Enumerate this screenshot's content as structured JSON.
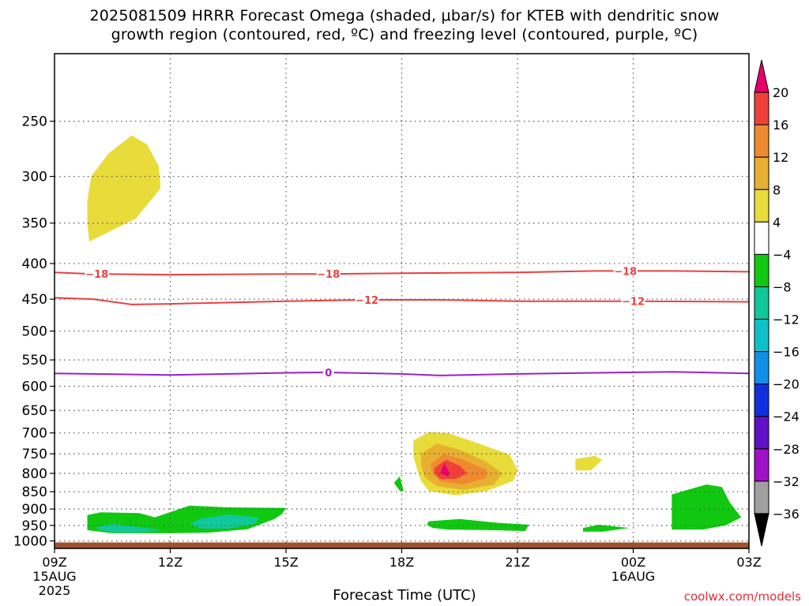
{
  "title_line1": "2025081509 HRRR Forecast Omega (shaded, μbar/s) for KTEB with dendritic snow",
  "title_line2": "growth region (contoured, red, ºC) and freezing level (contoured, purple, ºC)",
  "xaxis_title": "Forecast Time (UTC)",
  "credit": "coolwx.com/models",
  "chart_data": {
    "type": "heatmap",
    "title": "2025081509 HRRR Forecast Omega (shaded, μbar/s) for KTEB with dendritic snow growth region (contoured, red, ºC) and freezing level (contoured, purple, ºC)",
    "xlabel": "Forecast Time (UTC)",
    "ylabel": "",
    "x_range_hours": [
      0,
      18
    ],
    "x_ticks": [
      {
        "hour": 0,
        "label": "09Z",
        "sub1": "15AUG",
        "sub2": "2025"
      },
      {
        "hour": 3,
        "label": "12Z"
      },
      {
        "hour": 6,
        "label": "15Z"
      },
      {
        "hour": 9,
        "label": "18Z"
      },
      {
        "hour": 12,
        "label": "21Z"
      },
      {
        "hour": 15,
        "label": "00Z",
        "sub1": "16AUG"
      },
      {
        "hour": 18,
        "label": "03Z"
      }
    ],
    "y_axis_pressure_hPa": [
      200,
      1025
    ],
    "y_scale": "log",
    "y_inverted": true,
    "y_ticks": [
      250,
      300,
      350,
      400,
      450,
      500,
      550,
      600,
      650,
      700,
      750,
      800,
      850,
      900,
      950,
      1000
    ],
    "grid": true,
    "colorbar": {
      "levels": [
        20,
        16,
        12,
        8,
        4,
        -4,
        -8,
        -12,
        -16,
        -20,
        -24,
        -28,
        -32,
        -36
      ],
      "colors": [
        "#e8006a",
        "#f0403a",
        "#f08a30",
        "#e8b030",
        "#e8dc3a",
        "#ffffff",
        "#10c810",
        "#10c89a",
        "#10c0c8",
        "#1090e8",
        "#1030e0",
        "#6010c8",
        "#a010c8",
        "#a0a0a0",
        "#000000"
      ]
    },
    "contours": [
      {
        "name": "dendritic snow growth region",
        "value": -18,
        "color": "#e84040",
        "points": [
          [
            0,
            412
          ],
          [
            1,
            414
          ],
          [
            3,
            415
          ],
          [
            6,
            414
          ],
          [
            7,
            414
          ],
          [
            9,
            413
          ],
          [
            12,
            412
          ],
          [
            14,
            410
          ],
          [
            16,
            410
          ],
          [
            18,
            411
          ]
        ],
        "labels_at_hour": [
          1.1,
          7.1,
          14.8
        ]
      },
      {
        "name": "dendritic snow growth region",
        "value": -12,
        "color": "#e84040",
        "points": [
          [
            0,
            448
          ],
          [
            1,
            450
          ],
          [
            2,
            458
          ],
          [
            3,
            457
          ],
          [
            6,
            453
          ],
          [
            8,
            451
          ],
          [
            10,
            451
          ],
          [
            12,
            453
          ],
          [
            15,
            453
          ],
          [
            18,
            454
          ]
        ],
        "labels_at_hour": [
          8.1,
          15.0
        ]
      },
      {
        "name": "freezing level",
        "value": 0,
        "color": "#9a20c8",
        "points": [
          [
            0,
            575
          ],
          [
            3,
            578
          ],
          [
            6,
            574
          ],
          [
            7,
            573
          ],
          [
            9,
            576
          ],
          [
            10,
            579
          ],
          [
            12,
            576
          ],
          [
            14,
            574
          ],
          [
            15,
            573
          ],
          [
            16,
            572
          ],
          [
            18,
            575
          ]
        ],
        "labels_at_hour": [
          7.1
        ]
      }
    ],
    "omega_regions": [
      {
        "level": 4,
        "color": "#e8dc3a",
        "pts": [
          [
            0.9,
            372
          ],
          [
            2.1,
            345
          ],
          [
            2.75,
            312
          ],
          [
            2.7,
            290
          ],
          [
            2.4,
            270
          ],
          [
            2.0,
            262
          ],
          [
            1.4,
            278
          ],
          [
            0.95,
            300
          ],
          [
            0.85,
            325
          ],
          [
            0.85,
            350
          ]
        ]
      },
      {
        "level": -4,
        "color": "#10c810",
        "pts": [
          [
            0.85,
            918
          ],
          [
            1.2,
            910
          ],
          [
            2.2,
            912
          ],
          [
            2.6,
            925
          ],
          [
            3.5,
            890
          ],
          [
            4.5,
            895
          ],
          [
            6.0,
            897
          ],
          [
            5.9,
            915
          ],
          [
            5.7,
            930
          ],
          [
            5.0,
            962
          ],
          [
            4.0,
            973
          ],
          [
            3.0,
            975
          ],
          [
            1.5,
            975
          ],
          [
            0.85,
            965
          ]
        ]
      },
      {
        "level": -8,
        "color": "#10c89a",
        "pts": [
          [
            1.1,
            955
          ],
          [
            1.5,
            945
          ],
          [
            2.2,
            955
          ],
          [
            2.8,
            965
          ],
          [
            2.2,
            972
          ],
          [
            1.5,
            972
          ],
          [
            1.1,
            962
          ]
        ]
      },
      {
        "level": -8,
        "color": "#10c89a",
        "pts": [
          [
            3.8,
            928
          ],
          [
            4.5,
            916
          ],
          [
            5.3,
            925
          ],
          [
            5.2,
            945
          ],
          [
            4.5,
            960
          ],
          [
            3.8,
            960
          ],
          [
            3.5,
            945
          ]
        ]
      },
      {
        "level": 4,
        "color": "#e8dc3a",
        "pts": [
          [
            9.3,
            718
          ],
          [
            9.7,
            698
          ],
          [
            10.2,
            700
          ],
          [
            11.0,
            725
          ],
          [
            11.8,
            752
          ],
          [
            12.0,
            790
          ],
          [
            11.9,
            820
          ],
          [
            11.2,
            848
          ],
          [
            10.4,
            860
          ],
          [
            9.7,
            848
          ],
          [
            9.5,
            820
          ],
          [
            9.4,
            790
          ],
          [
            9.3,
            755
          ]
        ]
      },
      {
        "level": 8,
        "color": "#e8b030",
        "pts": [
          [
            9.5,
            750
          ],
          [
            9.9,
            725
          ],
          [
            10.5,
            740
          ],
          [
            11.2,
            770
          ],
          [
            11.6,
            800
          ],
          [
            11.4,
            830
          ],
          [
            10.6,
            845
          ],
          [
            9.9,
            835
          ],
          [
            9.6,
            810
          ],
          [
            9.5,
            780
          ]
        ]
      },
      {
        "level": 12,
        "color": "#f08a30",
        "pts": [
          [
            9.75,
            775
          ],
          [
            10.1,
            750
          ],
          [
            10.6,
            765
          ],
          [
            11.2,
            790
          ],
          [
            11.2,
            812
          ],
          [
            10.6,
            830
          ],
          [
            10.0,
            822
          ],
          [
            9.8,
            800
          ]
        ]
      },
      {
        "level": 16,
        "color": "#f0403a",
        "pts": [
          [
            9.85,
            785
          ],
          [
            10.15,
            765
          ],
          [
            10.5,
            780
          ],
          [
            10.7,
            800
          ],
          [
            10.4,
            815
          ],
          [
            10.0,
            815
          ],
          [
            9.85,
            800
          ]
        ]
      },
      {
        "level": 20,
        "color": "#e8006a",
        "pts": [
          [
            10.0,
            800
          ],
          [
            10.1,
            773
          ],
          [
            10.25,
            800
          ],
          [
            10.2,
            808
          ]
        ]
      },
      {
        "level": 4,
        "color": "#e8dc3a",
        "pts": [
          [
            13.5,
            763
          ],
          [
            14.0,
            755
          ],
          [
            14.2,
            765
          ],
          [
            13.9,
            792
          ],
          [
            13.5,
            792
          ]
        ]
      },
      {
        "level": -4,
        "color": "#10c810",
        "pts": [
          [
            8.8,
            825
          ],
          [
            8.95,
            808
          ],
          [
            9.05,
            848
          ],
          [
            8.95,
            848
          ]
        ]
      },
      {
        "level": -4,
        "color": "#10c810",
        "pts": [
          [
            9.7,
            937
          ],
          [
            10.5,
            930
          ],
          [
            11.5,
            942
          ],
          [
            12.3,
            948
          ],
          [
            12.2,
            968
          ],
          [
            11.3,
            965
          ],
          [
            10.2,
            963
          ],
          [
            9.8,
            958
          ],
          [
            9.65,
            948
          ]
        ]
      },
      {
        "level": -4,
        "color": "#10c810",
        "pts": [
          [
            13.7,
            958
          ],
          [
            14.1,
            948
          ],
          [
            14.9,
            958
          ],
          [
            14.2,
            970
          ],
          [
            13.7,
            970
          ]
        ]
      },
      {
        "level": -4,
        "color": "#10c810",
        "pts": [
          [
            16.0,
            858
          ],
          [
            16.4,
            845
          ],
          [
            16.9,
            830
          ],
          [
            17.3,
            837
          ],
          [
            17.5,
            880
          ],
          [
            17.8,
            925
          ],
          [
            17.4,
            950
          ],
          [
            16.8,
            963
          ],
          [
            16.0,
            963
          ]
        ]
      }
    ],
    "ground": {
      "color": "#a0522d",
      "from_hPa": 1005
    }
  }
}
